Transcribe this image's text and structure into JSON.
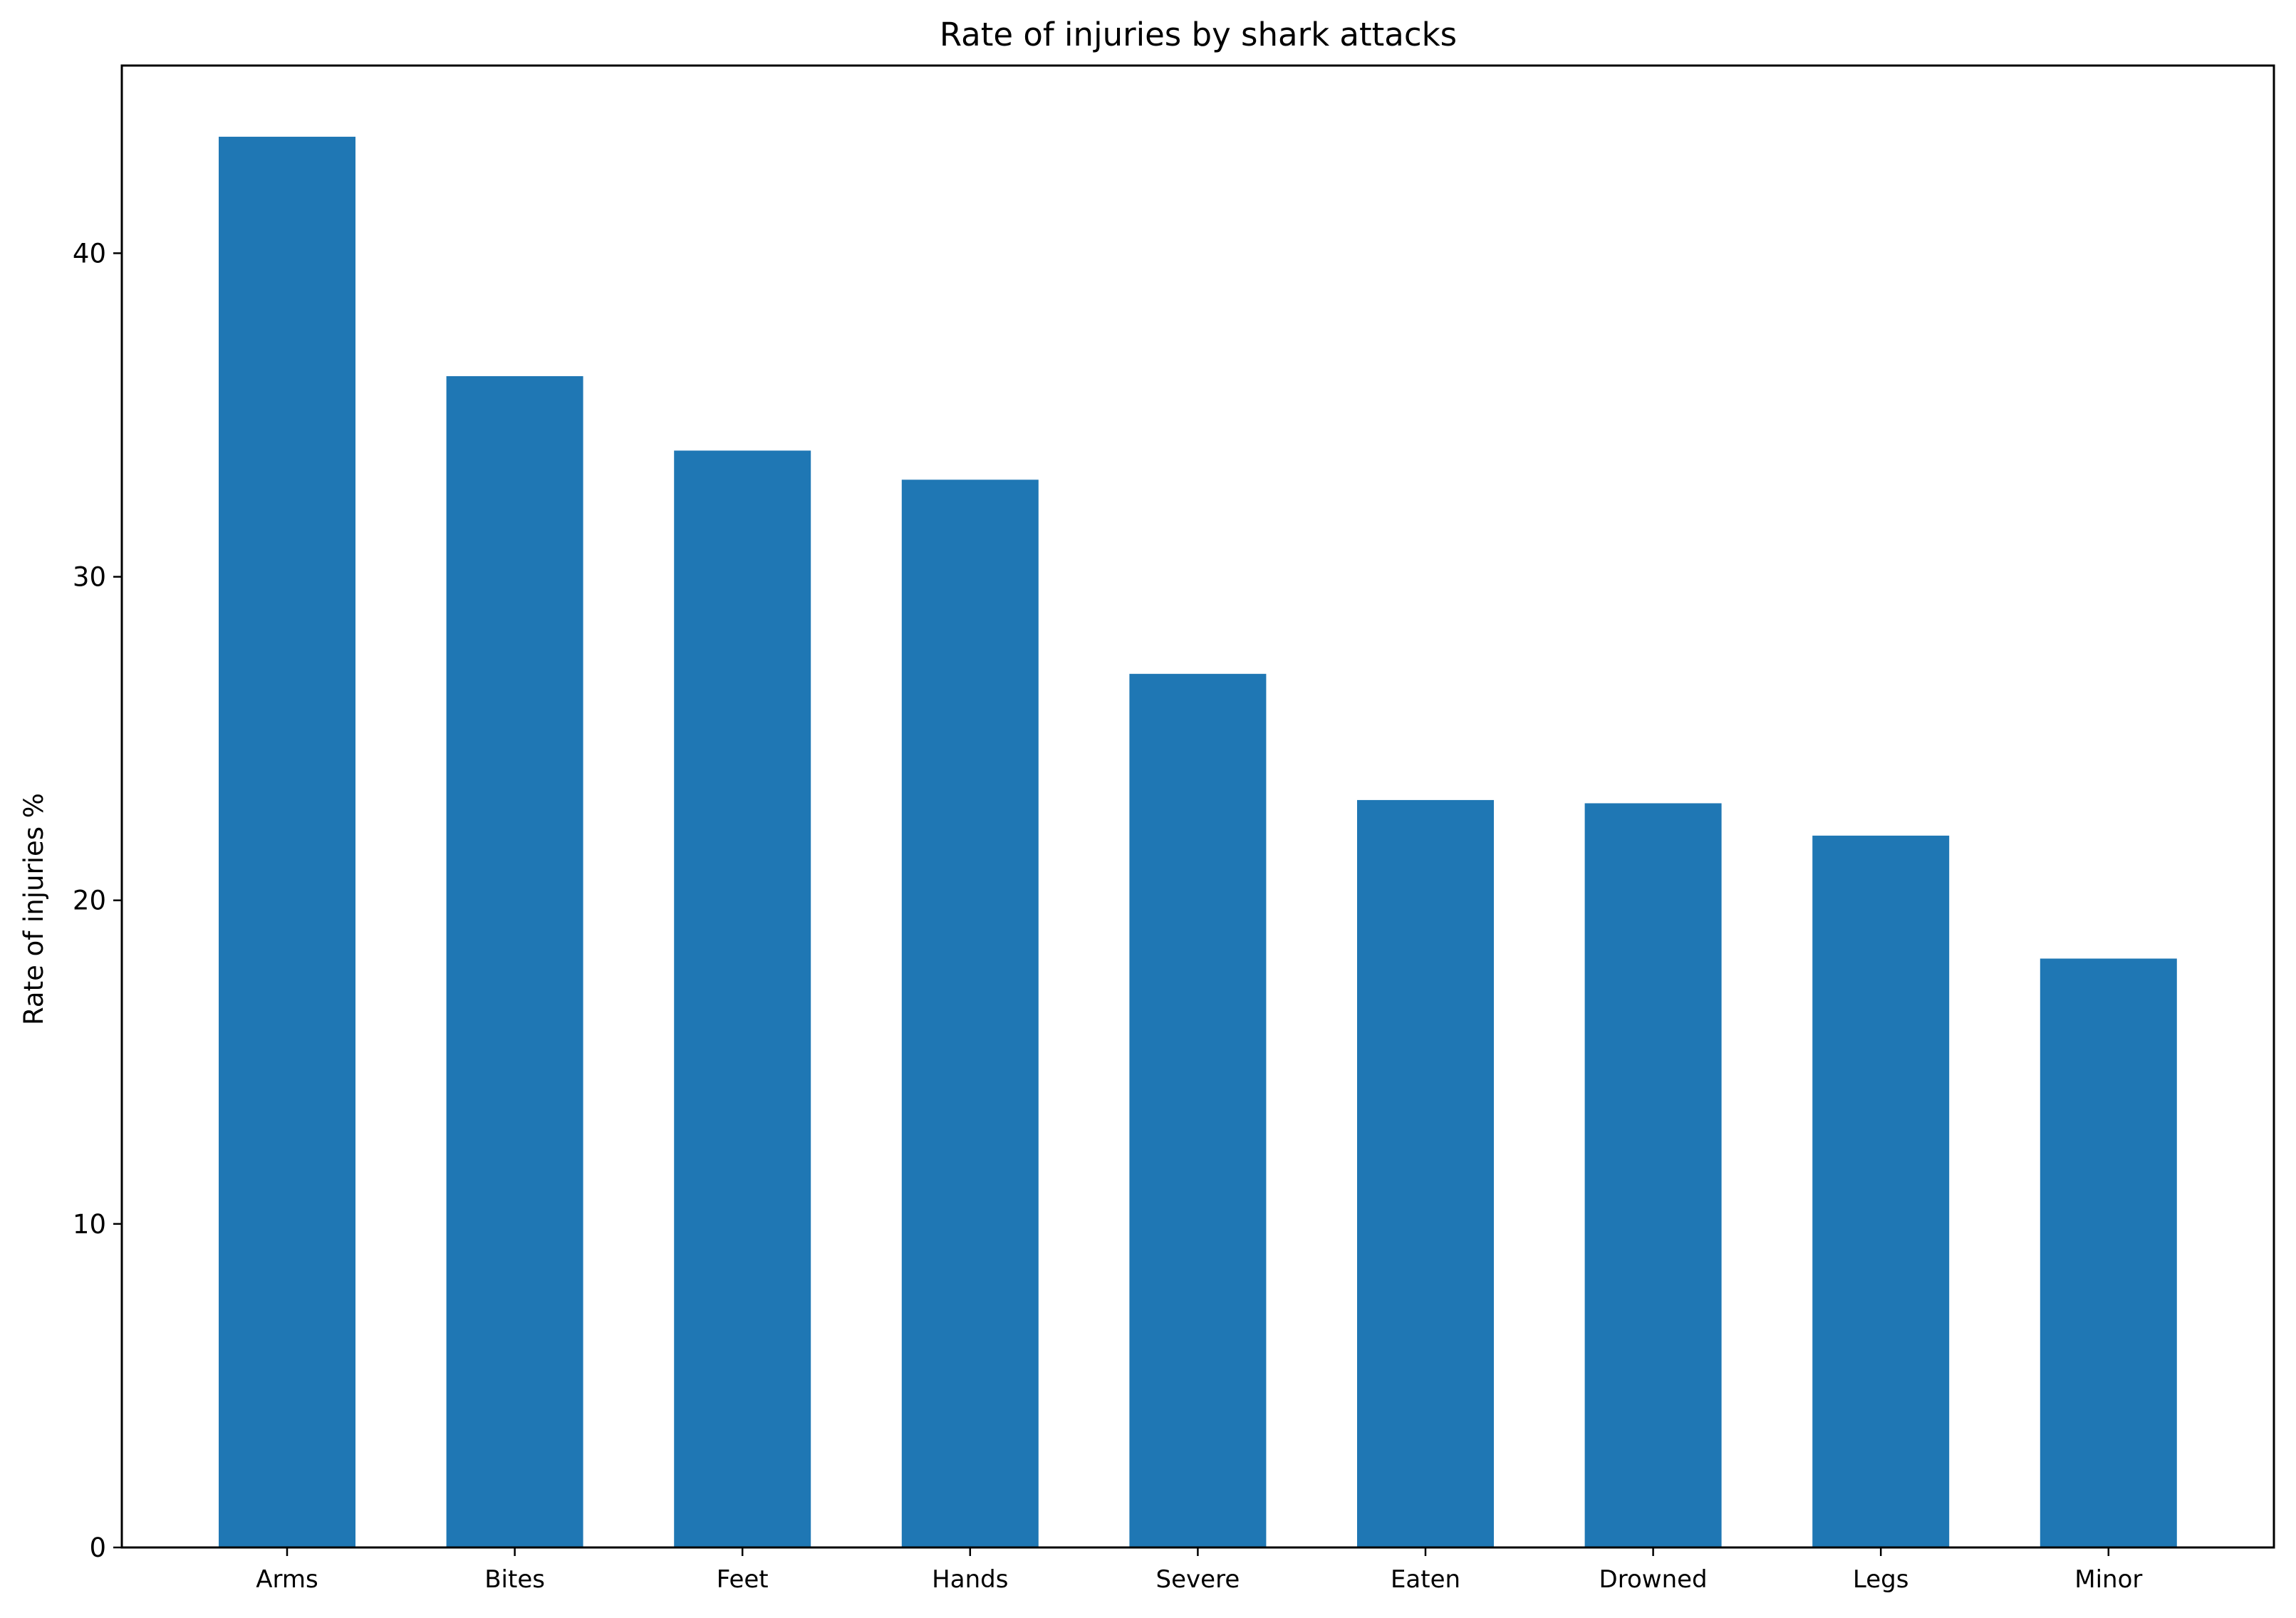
{
  "chart_data": {
    "type": "bar",
    "title": "Rate of injuries by shark attacks",
    "xlabel": "",
    "ylabel": "Rate of injuries %",
    "categories": [
      "Arms",
      "Bites",
      "Feet",
      "Hands",
      "Severe",
      "Eaten",
      "Drowned",
      "Legs",
      "Minor"
    ],
    "values": [
      43.6,
      36.2,
      33.9,
      33.0,
      27.0,
      23.1,
      23.0,
      22.0,
      18.2
    ],
    "ylim": [
      0,
      45.8
    ],
    "yticks": [
      0,
      10,
      20,
      30,
      40
    ],
    "grid": false,
    "legend": "none",
    "colors": {
      "bar": "#1f77b4",
      "axis": "#000000",
      "background": "#ffffff"
    }
  }
}
